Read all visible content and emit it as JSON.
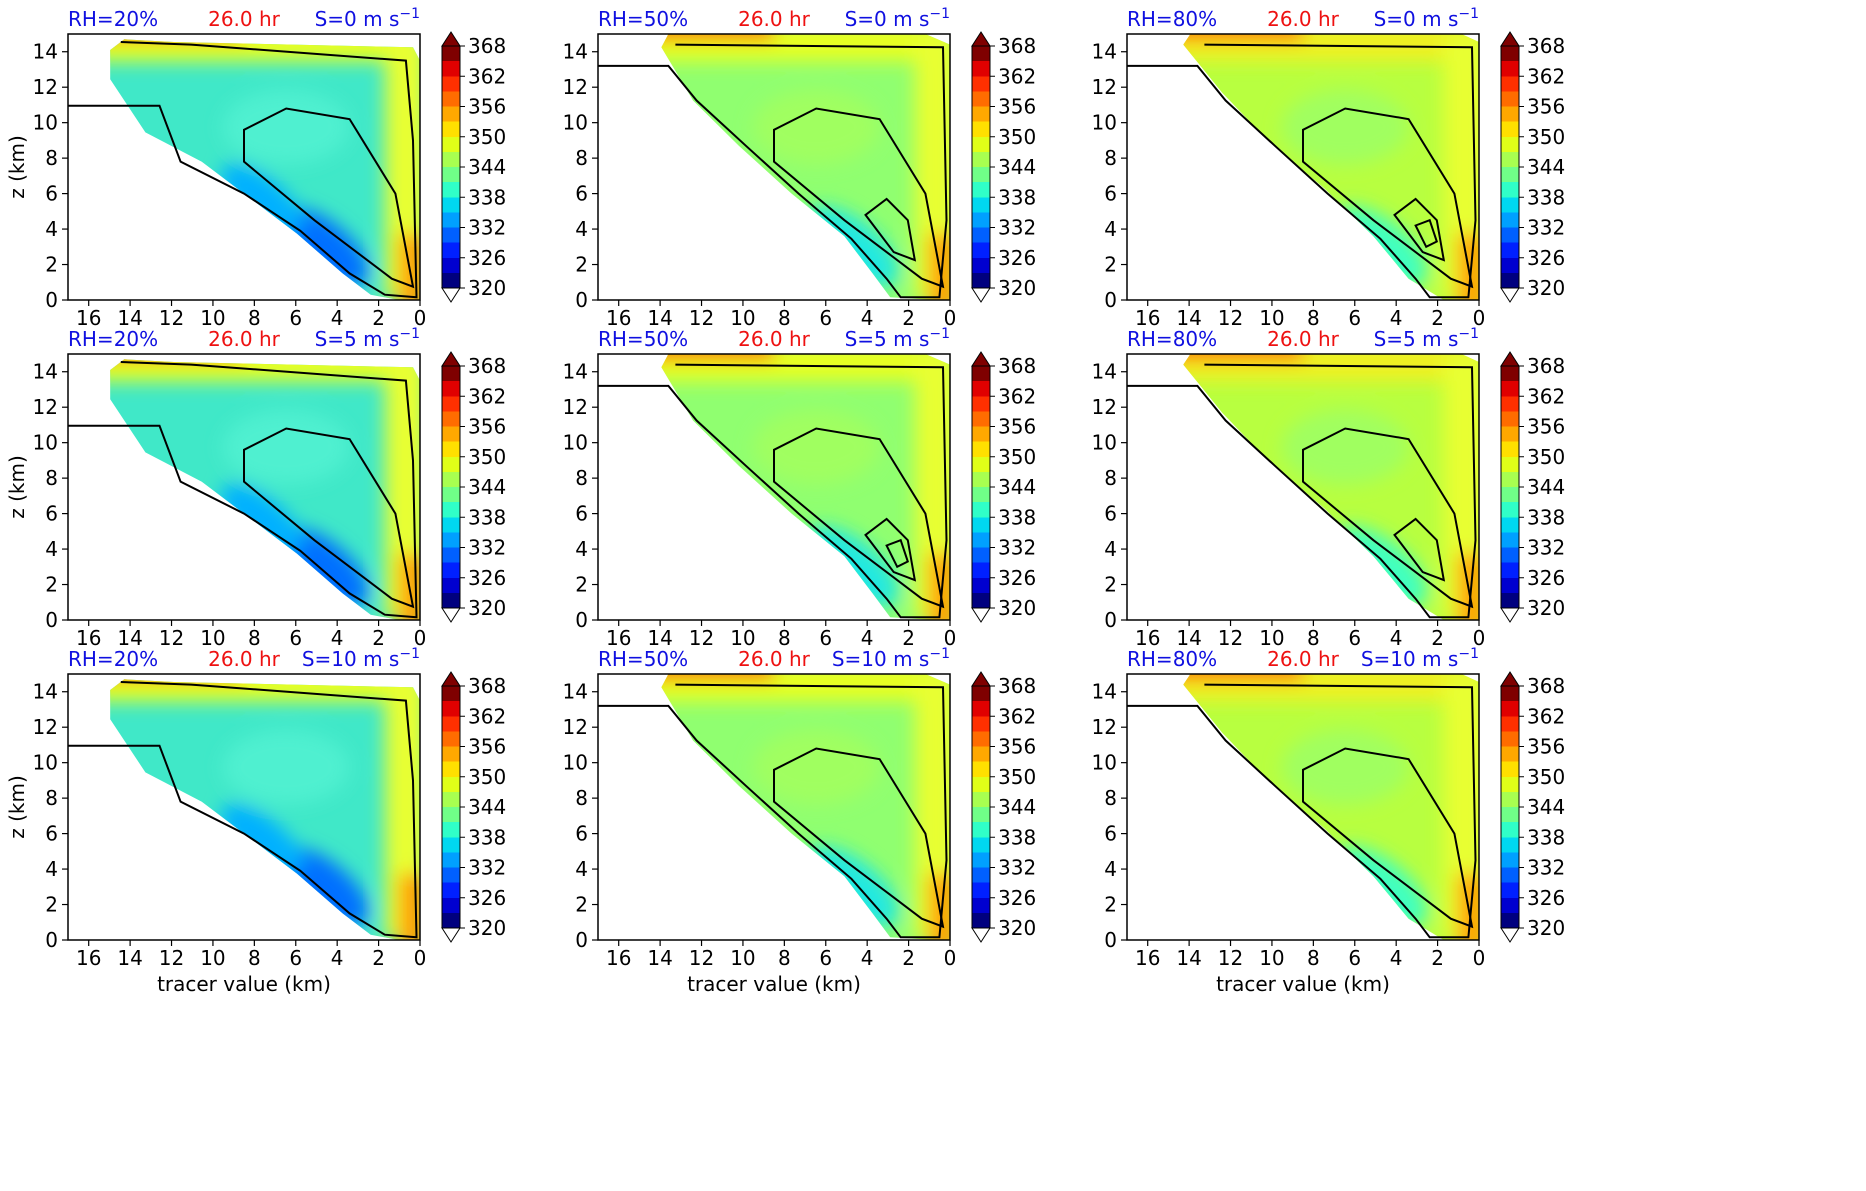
{
  "colors": {
    "rh": "#1010e0",
    "time": "#ee1111",
    "shear": "#1010e0",
    "colormap": [
      "#00007f",
      "#0000d0",
      "#0020ff",
      "#0060ff",
      "#00a0ff",
      "#00d8f0",
      "#30ffc8",
      "#70ff88",
      "#a8ff50",
      "#e0ff18",
      "#ffe000",
      "#ffa800",
      "#ff6c00",
      "#ff3000",
      "#e00000",
      "#7f0000"
    ]
  },
  "labels": {
    "x_axis": "tracer value (km)",
    "y_axis": "z (km)"
  },
  "colorbar": {
    "ticks": [
      "368",
      "362",
      "356",
      "350",
      "344",
      "338",
      "332",
      "326",
      "320"
    ]
  },
  "chart_data": [
    {
      "type": "contour",
      "row": 0,
      "col": 0,
      "rh_label": "RH=20%",
      "time_label": "26.0 hr",
      "shear_label": "S=0 m s",
      "shear_exp": "−1",
      "x_ticks": [
        "16",
        "14",
        "12",
        "10",
        "8",
        "6",
        "4",
        "2",
        "0"
      ],
      "y_ticks": [
        "0",
        "2",
        "4",
        "6",
        "8",
        "10",
        "12",
        "14"
      ],
      "xlim": [
        17,
        0
      ],
      "ylim": [
        0,
        15
      ],
      "colorbar_range": [
        320,
        368
      ],
      "contour_levels": 2
    },
    {
      "type": "contour",
      "row": 0,
      "col": 1,
      "rh_label": "RH=50%",
      "time_label": "26.0 hr",
      "shear_label": "S=0 m s",
      "shear_exp": "−1",
      "x_ticks": [
        "16",
        "14",
        "12",
        "10",
        "8",
        "6",
        "4",
        "2",
        "0"
      ],
      "y_ticks": [
        "0",
        "2",
        "4",
        "6",
        "8",
        "10",
        "12",
        "14"
      ],
      "xlim": [
        17,
        0
      ],
      "ylim": [
        0,
        15
      ],
      "colorbar_range": [
        320,
        368
      ],
      "contour_levels": 3
    },
    {
      "type": "contour",
      "row": 0,
      "col": 2,
      "rh_label": "RH=80%",
      "time_label": "26.0 hr",
      "shear_label": "S=0 m s",
      "shear_exp": "−1",
      "x_ticks": [
        "16",
        "14",
        "12",
        "10",
        "8",
        "6",
        "4",
        "2",
        "0"
      ],
      "y_ticks": [
        "0",
        "2",
        "4",
        "6",
        "8",
        "10",
        "12",
        "14"
      ],
      "xlim": [
        17,
        0
      ],
      "ylim": [
        0,
        15
      ],
      "colorbar_range": [
        320,
        368
      ],
      "contour_levels": 4
    },
    {
      "type": "contour",
      "row": 1,
      "col": 0,
      "rh_label": "RH=20%",
      "time_label": "26.0 hr",
      "shear_label": "S=5 m s",
      "shear_exp": "−1",
      "x_ticks": [
        "16",
        "14",
        "12",
        "10",
        "8",
        "6",
        "4",
        "2",
        "0"
      ],
      "y_ticks": [
        "0",
        "2",
        "4",
        "6",
        "8",
        "10",
        "12",
        "14"
      ],
      "xlim": [
        17,
        0
      ],
      "ylim": [
        0,
        15
      ],
      "colorbar_range": [
        320,
        368
      ],
      "contour_levels": 2
    },
    {
      "type": "contour",
      "row": 1,
      "col": 1,
      "rh_label": "RH=50%",
      "time_label": "26.0 hr",
      "shear_label": "S=5 m s",
      "shear_exp": "−1",
      "x_ticks": [
        "16",
        "14",
        "12",
        "10",
        "8",
        "6",
        "4",
        "2",
        "0"
      ],
      "y_ticks": [
        "0",
        "2",
        "4",
        "6",
        "8",
        "10",
        "12",
        "14"
      ],
      "xlim": [
        17,
        0
      ],
      "ylim": [
        0,
        15
      ],
      "colorbar_range": [
        320,
        368
      ],
      "contour_levels": 4
    },
    {
      "type": "contour",
      "row": 1,
      "col": 2,
      "rh_label": "RH=80%",
      "time_label": "26.0 hr",
      "shear_label": "S=5 m s",
      "shear_exp": "−1",
      "x_ticks": [
        "16",
        "14",
        "12",
        "10",
        "8",
        "6",
        "4",
        "2",
        "0"
      ],
      "y_ticks": [
        "0",
        "2",
        "4",
        "6",
        "8",
        "10",
        "12",
        "14"
      ],
      "xlim": [
        17,
        0
      ],
      "ylim": [
        0,
        15
      ],
      "colorbar_range": [
        320,
        368
      ],
      "contour_levels": 3
    },
    {
      "type": "contour",
      "row": 2,
      "col": 0,
      "rh_label": "RH=20%",
      "time_label": "26.0 hr",
      "shear_label": "S=10 m s",
      "shear_exp": "−1",
      "x_ticks": [
        "16",
        "14",
        "12",
        "10",
        "8",
        "6",
        "4",
        "2",
        "0"
      ],
      "y_ticks": [
        "0",
        "2",
        "4",
        "6",
        "8",
        "10",
        "12",
        "14"
      ],
      "xlim": [
        17,
        0
      ],
      "ylim": [
        0,
        15
      ],
      "colorbar_range": [
        320,
        368
      ],
      "contour_levels": 1
    },
    {
      "type": "contour",
      "row": 2,
      "col": 1,
      "rh_label": "RH=50%",
      "time_label": "26.0 hr",
      "shear_label": "S=10 m s",
      "shear_exp": "−1",
      "x_ticks": [
        "16",
        "14",
        "12",
        "10",
        "8",
        "6",
        "4",
        "2",
        "0"
      ],
      "y_ticks": [
        "0",
        "2",
        "4",
        "6",
        "8",
        "10",
        "12",
        "14"
      ],
      "xlim": [
        17,
        0
      ],
      "ylim": [
        0,
        15
      ],
      "colorbar_range": [
        320,
        368
      ],
      "contour_levels": 2
    },
    {
      "type": "contour",
      "row": 2,
      "col": 2,
      "rh_label": "RH=80%",
      "time_label": "26.0 hr",
      "shear_label": "S=10 m s",
      "shear_exp": "−1",
      "x_ticks": [
        "16",
        "14",
        "12",
        "10",
        "8",
        "6",
        "4",
        "2",
        "0"
      ],
      "y_ticks": [
        "0",
        "2",
        "4",
        "6",
        "8",
        "10",
        "12",
        "14"
      ],
      "xlim": [
        17,
        0
      ],
      "ylim": [
        0,
        15
      ],
      "colorbar_range": [
        320,
        368
      ],
      "contour_levels": 2
    }
  ]
}
